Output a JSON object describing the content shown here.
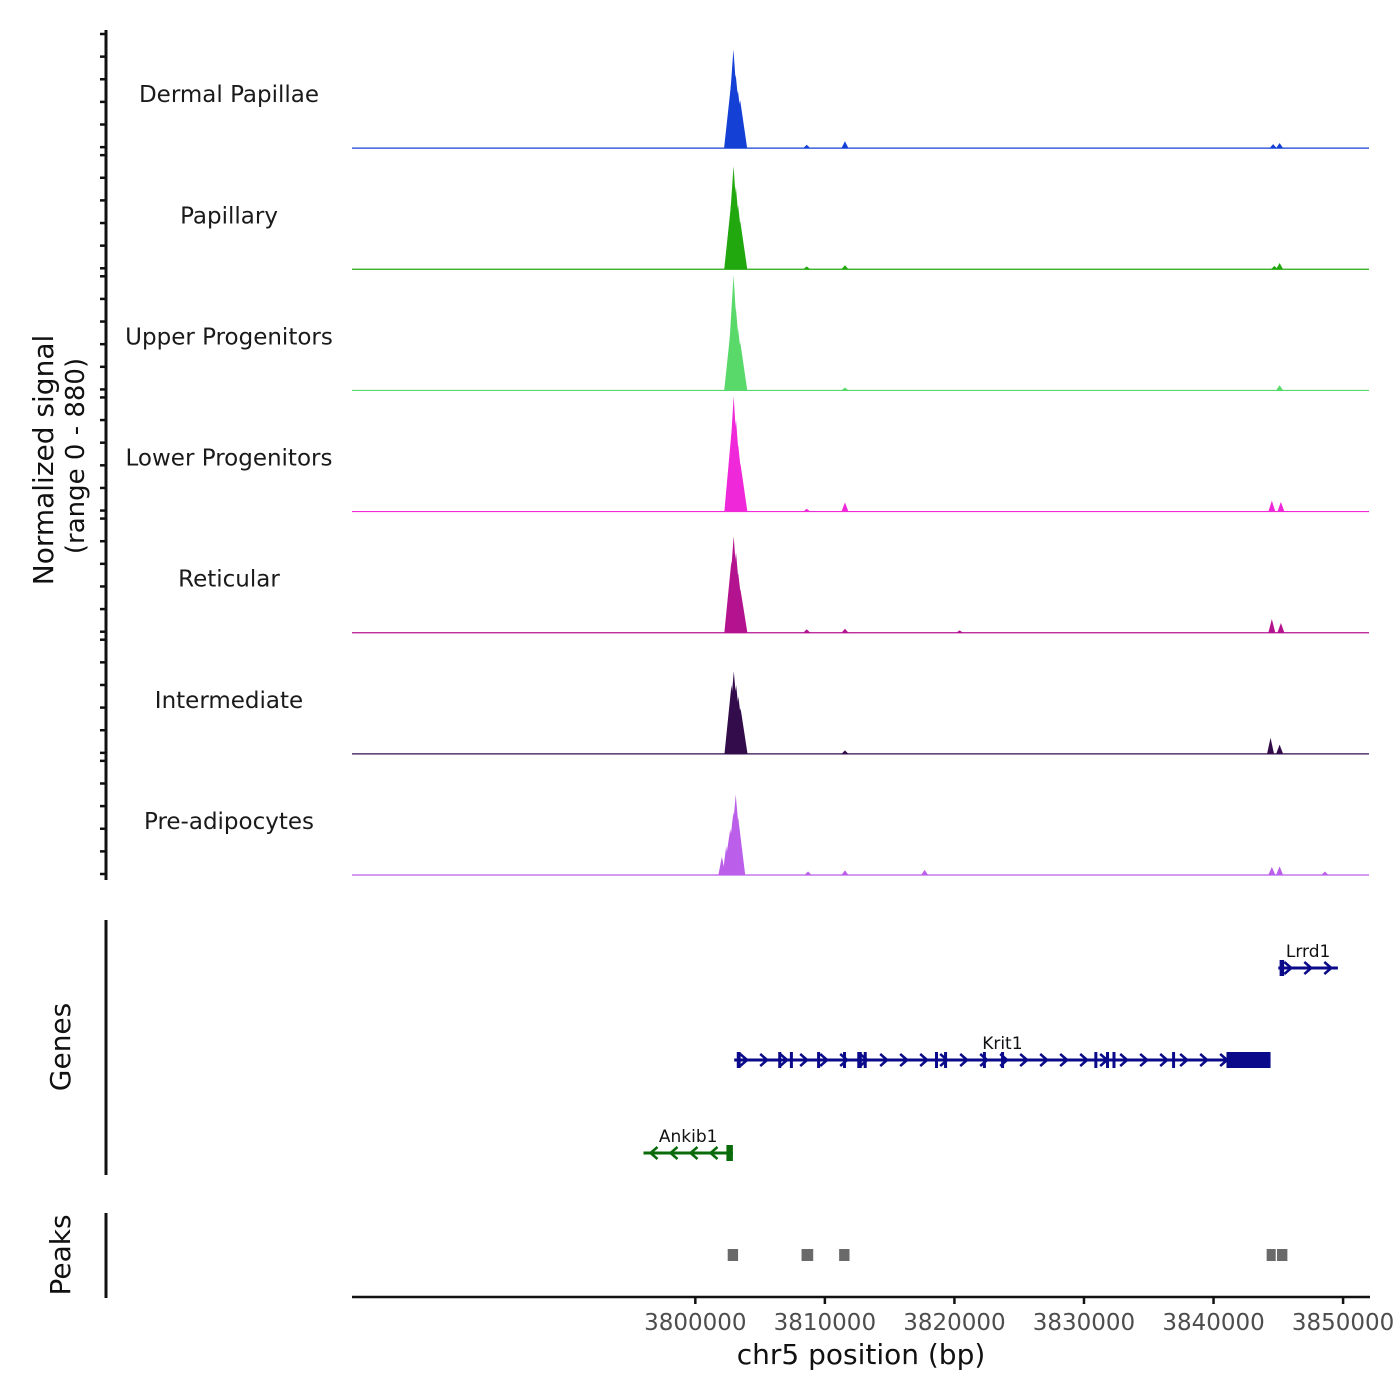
{
  "chart_data": {
    "type": "area",
    "title": "",
    "ylabel_line1": "Normalized signal",
    "ylabel_line2": "(range 0 - 880)",
    "xlabel": "chr5 position (bp)",
    "xlim": [
      3773500,
      3852000
    ],
    "ylim": [
      0,
      880
    ],
    "x_ticks": [
      3800000,
      3810000,
      3820000,
      3830000,
      3840000,
      3850000
    ],
    "x_tick_labels": [
      "3800000",
      "3810000",
      "3820000",
      "3830000",
      "3840000",
      "3850000"
    ],
    "tracks": [
      {
        "name": "Dermal Papillae",
        "color": "#1440d6",
        "peaks": [
          [
            3802760,
            560
          ],
          [
            3802940,
            860
          ],
          [
            3803120,
            640
          ],
          [
            3803290,
            500
          ],
          [
            3803460,
            420
          ],
          [
            3808600,
            30
          ],
          [
            3811550,
            60
          ],
          [
            3844600,
            35
          ],
          [
            3845100,
            45
          ]
        ]
      },
      {
        "name": "Papillary",
        "color": "#22a80f",
        "peaks": [
          [
            3802770,
            580
          ],
          [
            3802950,
            900
          ],
          [
            3803130,
            720
          ],
          [
            3803300,
            560
          ],
          [
            3803470,
            420
          ],
          [
            3808600,
            25
          ],
          [
            3811550,
            35
          ],
          [
            3844700,
            30
          ],
          [
            3845100,
            55
          ]
        ]
      },
      {
        "name": "Upper Progenitors",
        "color": "#5ad96b",
        "peaks": [
          [
            3802770,
            580
          ],
          [
            3802950,
            1020
          ],
          [
            3803130,
            720
          ],
          [
            3803300,
            540
          ],
          [
            3803470,
            420
          ],
          [
            3811550,
            25
          ],
          [
            3845100,
            45
          ]
        ]
      },
      {
        "name": "Lower Progenitors",
        "color": "#ef28d9",
        "peaks": [
          [
            3802780,
            680
          ],
          [
            3802960,
            1150
          ],
          [
            3803140,
            800
          ],
          [
            3803310,
            580
          ],
          [
            3803480,
            420
          ],
          [
            3808600,
            25
          ],
          [
            3811550,
            80
          ],
          [
            3844500,
            95
          ],
          [
            3845200,
            85
          ]
        ]
      },
      {
        "name": "Reticular",
        "color": "#b4138f",
        "peaks": [
          [
            3802780,
            620
          ],
          [
            3802960,
            840
          ],
          [
            3803140,
            700
          ],
          [
            3803310,
            520
          ],
          [
            3803480,
            380
          ],
          [
            3808600,
            30
          ],
          [
            3811550,
            35
          ],
          [
            3820400,
            20
          ],
          [
            3844500,
            120
          ],
          [
            3845200,
            85
          ]
        ]
      },
      {
        "name": "Intermediate",
        "color": "#330d4b",
        "peaks": [
          [
            3802790,
            600
          ],
          [
            3802970,
            720
          ],
          [
            3803150,
            600
          ],
          [
            3803320,
            500
          ],
          [
            3803490,
            400
          ],
          [
            3811550,
            30
          ],
          [
            3844400,
            140
          ],
          [
            3845100,
            80
          ]
        ]
      },
      {
        "name": "Pre-adipocytes",
        "color": "#bb5ee9",
        "peaks": [
          [
            3802050,
            160
          ],
          [
            3802380,
            250
          ],
          [
            3802700,
            400
          ],
          [
            3802940,
            550
          ],
          [
            3803120,
            700
          ],
          [
            3803310,
            500
          ],
          [
            3808700,
            30
          ],
          [
            3811550,
            40
          ],
          [
            3817700,
            45
          ],
          [
            3844500,
            70
          ],
          [
            3845100,
            75
          ],
          [
            3848600,
            30
          ]
        ]
      }
    ],
    "genes": [
      {
        "name": "Lrrd1",
        "color": "#0a0a8a",
        "strand": "+",
        "start": 3845000,
        "end": 3849600,
        "row": 0,
        "exons": [
          [
            3845100,
            3845450
          ]
        ]
      },
      {
        "name": "Krit1",
        "color": "#0a0a8a",
        "strand": "+",
        "start": 3803000,
        "end": 3844400,
        "row": 1,
        "exons": [
          [
            3803200,
            3803500
          ],
          [
            3806400,
            3806500
          ],
          [
            3807300,
            3807400
          ],
          [
            3809400,
            3809500
          ],
          [
            3811400,
            3811500
          ],
          [
            3812500,
            3812850
          ],
          [
            3813000,
            3813150
          ],
          [
            3818500,
            3818600
          ],
          [
            3819200,
            3819300
          ],
          [
            3822200,
            3822300
          ],
          [
            3823600,
            3823700
          ],
          [
            3830800,
            3830900
          ],
          [
            3831700,
            3831800
          ],
          [
            3832200,
            3832300
          ],
          [
            3836800,
            3836900
          ],
          [
            3841000,
            3844400
          ]
        ]
      },
      {
        "name": "Ankib1",
        "color": "#0a6b0a",
        "strand": "-",
        "start": 3796000,
        "end": 3802900,
        "row": 2,
        "exons": [
          [
            3802400,
            3802900
          ]
        ]
      }
    ],
    "peaks_track": {
      "color": "#6a6a6a",
      "regions": [
        [
          3802500,
          3803300
        ],
        [
          3808200,
          3809100
        ],
        [
          3811100,
          3811900
        ],
        [
          3844100,
          3844800
        ],
        [
          3844900,
          3845700
        ]
      ]
    },
    "panel_labels": {
      "genes": "Genes",
      "peaks": "Peaks"
    }
  }
}
